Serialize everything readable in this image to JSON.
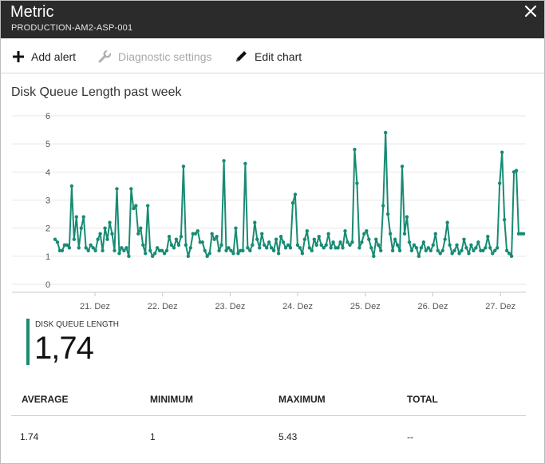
{
  "window": {
    "title": "Metric",
    "subtitle": "PRODUCTION-AM2-ASP-001",
    "close_icon": "close-icon"
  },
  "toolbar": {
    "add_alert": "Add alert",
    "diagnostic_settings": "Diagnostic settings",
    "edit_chart": "Edit chart"
  },
  "chart_title": "Disk Queue Length past week",
  "chart_data": {
    "type": "line",
    "title": "Disk Queue Length past week",
    "xlabel": "",
    "ylabel": "",
    "ylim": [
      0,
      6
    ],
    "yticks": [
      "0",
      "1",
      "2",
      "3",
      "4",
      "5",
      "6"
    ],
    "xticks": [
      "21. Dez",
      "22. Dez",
      "23. Dez",
      "24. Dez",
      "25. Dez",
      "26. Dez",
      "27. Dez"
    ],
    "xlim": [
      0,
      167
    ],
    "grid": true,
    "color": "#188b73",
    "series": [
      {
        "values": [
          1.6,
          1.5,
          1.2,
          1.2,
          1.4,
          1.4,
          1.3,
          3.5,
          1.6,
          2.4,
          1.3,
          2.0,
          2.4,
          1.3,
          1.2,
          1.4,
          1.3,
          1.2,
          1.6,
          1.8,
          1.2,
          2.0,
          1.6,
          2.2,
          1.8,
          1.2,
          3.4,
          1.1,
          1.3,
          1.2,
          1.3,
          1.0,
          3.4,
          2.7,
          2.8,
          1.8,
          2.0,
          1.4,
          1.1,
          2.8,
          1.2,
          1.0,
          1.1,
          1.3,
          1.2,
          1.2,
          1.1,
          1.2,
          1.7,
          1.4,
          1.3,
          1.6,
          1.4,
          1.7,
          4.2,
          1.4,
          1.0,
          1.3,
          1.8,
          1.8,
          1.9,
          1.5,
          1.5,
          1.2,
          1.0,
          1.1,
          1.8,
          1.6,
          1.7,
          1.2,
          1.4,
          4.4,
          1.2,
          1.3,
          1.2,
          1.1,
          2.0,
          1.1,
          1.2,
          1.2,
          4.3,
          1.3,
          1.2,
          1.4,
          2.2,
          1.6,
          1.3,
          1.8,
          1.4,
          1.3,
          1.5,
          1.3,
          1.2,
          1.6,
          1.1,
          1.7,
          1.5,
          1.3,
          1.4,
          1.3,
          2.9,
          3.2,
          1.4,
          1.3,
          1.1,
          1.6,
          1.9,
          1.3,
          1.2,
          1.6,
          1.4,
          1.7,
          1.4,
          1.3,
          1.4,
          1.8,
          1.3,
          1.5,
          1.3,
          1.3,
          1.5,
          1.3,
          1.9,
          1.5,
          1.4,
          1.5,
          4.8,
          3.6,
          1.3,
          1.5,
          1.8,
          1.9,
          1.6,
          1.3,
          1.0,
          1.6,
          1.4,
          1.2,
          2.8,
          5.4,
          2.5,
          1.8,
          1.2,
          1.6,
          1.4,
          1.2,
          4.2,
          1.8,
          2.4,
          1.5,
          1.2,
          1.4,
          1.3,
          1.0,
          1.3,
          1.5,
          1.2,
          1.3,
          1.2,
          1.4,
          1.8,
          1.2,
          1.1,
          1.2,
          1.6,
          2.2,
          1.4,
          1.1,
          1.2,
          1.4,
          1.1,
          1.2,
          1.6,
          1.3,
          1.1,
          1.4,
          1.2,
          1.3,
          1.5,
          1.2,
          1.2,
          1.3,
          1.7,
          1.3,
          1.1,
          1.2,
          1.3,
          3.6,
          4.7,
          2.3,
          1.2,
          1.1,
          1.0,
          4.0,
          4.05,
          1.8,
          1.8,
          1.8
        ]
      }
    ]
  },
  "metric": {
    "label": "DISK QUEUE LENGTH",
    "value": "1,74",
    "color": "#188b73"
  },
  "stats": {
    "headers": [
      "AVERAGE",
      "MINIMUM",
      "MAXIMUM",
      "TOTAL"
    ],
    "values": [
      "1.74",
      "1",
      "5.43",
      "--"
    ]
  }
}
